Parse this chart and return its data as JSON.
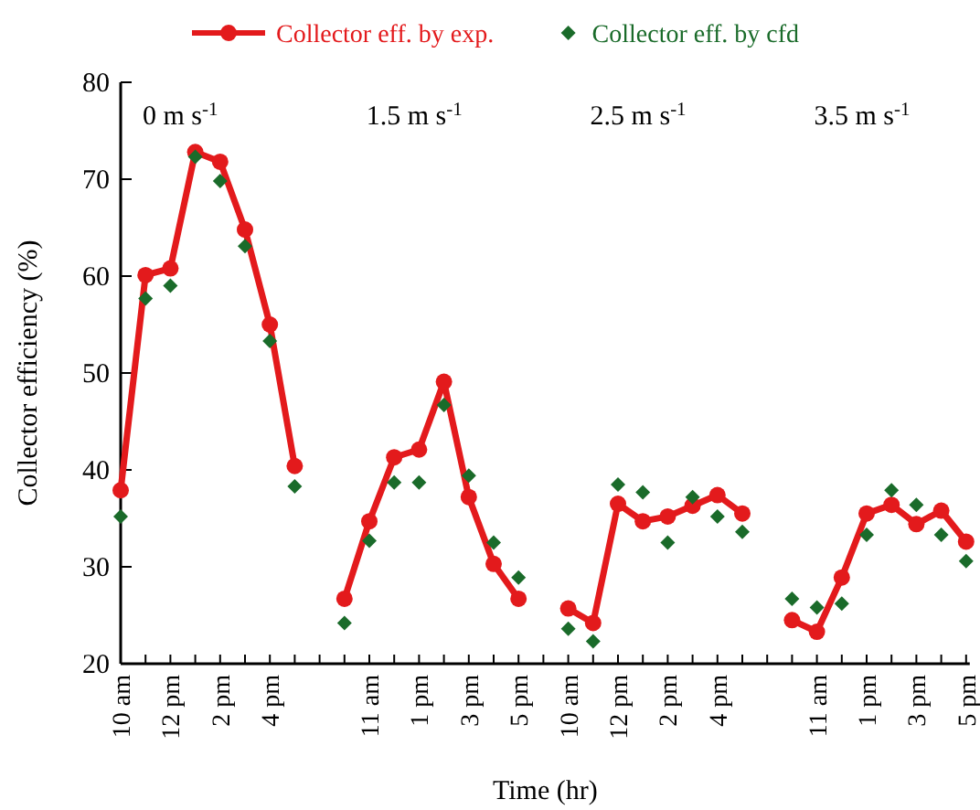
{
  "chart_data": {
    "type": "line",
    "xlabel": "Time (hr)",
    "ylabel": "Collector efficiency (%)",
    "categories": [
      "10 am",
      null,
      "12 pm",
      null,
      "2 pm",
      null,
      "4 pm",
      null,
      null,
      null,
      "11 am",
      null,
      "1 pm",
      null,
      "3 pm",
      null,
      "5 pm",
      null,
      "10 am",
      null,
      "12 pm",
      null,
      "2 pm",
      null,
      "4 pm",
      null,
      null,
      null,
      "11 am",
      null,
      "1 pm",
      null,
      "3 pm",
      null,
      "5 pm"
    ],
    "series": [
      {
        "name": "Collector eff. by exp.",
        "color": "#e31a1c",
        "marker": "circle",
        "values": [
          37.9,
          60.1,
          60.8,
          72.8,
          71.8,
          64.8,
          55,
          40.4,
          null,
          26.7,
          34.7,
          41.3,
          42.1,
          49.1,
          37.2,
          30.3,
          26.7,
          null,
          25.7,
          24.2,
          36.5,
          34.7,
          35.2,
          36.3,
          37.4,
          35.5,
          null,
          24.5,
          23.3,
          28.9,
          35.5,
          36.4,
          34.4,
          35.8,
          32.6
        ]
      },
      {
        "name": "Collector eff. by cfd",
        "color": "#1a6b2a",
        "type": "scatter",
        "marker": "diamond",
        "values": [
          35.2,
          57.7,
          59,
          72.3,
          69.8,
          63.1,
          53.3,
          38.3,
          null,
          24.2,
          32.7,
          38.7,
          38.7,
          46.7,
          39.4,
          32.5,
          28.9,
          null,
          23.6,
          22.3,
          38.5,
          37.7,
          32.5,
          37.2,
          35.2,
          33.6,
          null,
          26.7,
          25.8,
          26.2,
          33.3,
          37.9,
          36.4,
          33.3,
          30.6
        ]
      }
    ],
    "annotations": [
      "0 m s$^{-1}$",
      "1.5 m s$^{-1}$",
      "2.5 m s$^{-1}$",
      "3.5 m s$^{-1}$"
    ],
    "ylim": [
      20,
      80
    ],
    "yticks": [
      20,
      30,
      40,
      50,
      60,
      70,
      80
    ],
    "legend": "top",
    "grid": false
  }
}
